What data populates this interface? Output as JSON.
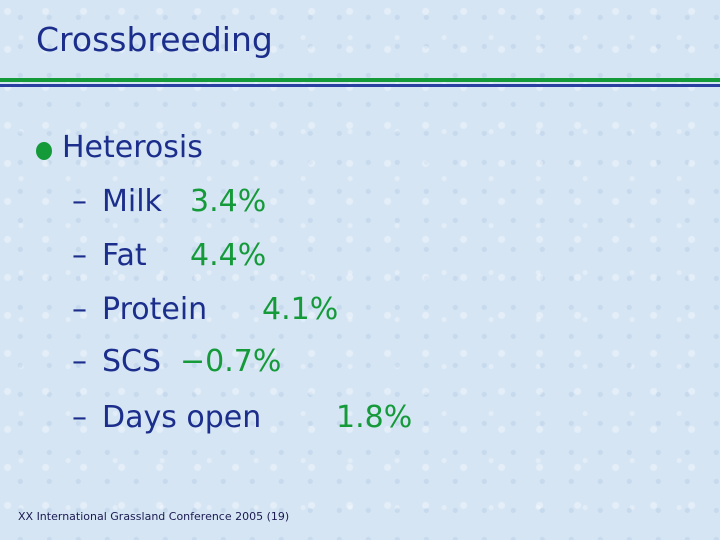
{
  "title": "Crossbreeding",
  "bullet": "Heterosis",
  "dash": "–",
  "items": [
    {
      "label": "Milk",
      "value": "3.4%"
    },
    {
      "label": "Fat",
      "value": "4.4%"
    },
    {
      "label": "Protein",
      "value": "4.1%"
    },
    {
      "label": "SCS",
      "value": "−0.7%"
    },
    {
      "label": "Days open",
      "value": "1.8%"
    }
  ],
  "footer": "XX International Grassland Conference 2005 (19)"
}
